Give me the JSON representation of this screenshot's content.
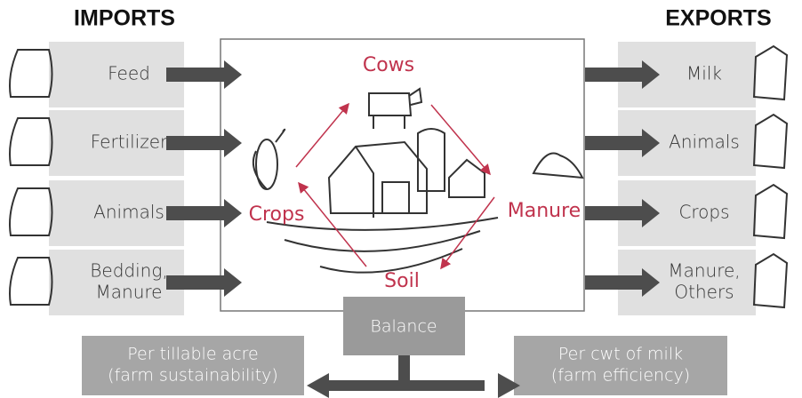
{
  "headers": {
    "imports": "IMPORTS",
    "exports": "EXPORTS"
  },
  "imports": [
    {
      "lines": [
        "Feed"
      ]
    },
    {
      "lines": [
        "Fertilizer"
      ]
    },
    {
      "lines": [
        "Animals"
      ]
    },
    {
      "lines": [
        "Bedding,",
        "Manure"
      ]
    }
  ],
  "exports": [
    {
      "lines": [
        "Milk"
      ]
    },
    {
      "lines": [
        "Animals"
      ]
    },
    {
      "lines": [
        "Crops"
      ]
    },
    {
      "lines": [
        "Manure,",
        "Others"
      ]
    }
  ],
  "cycle": {
    "cows": "Cows",
    "crops": "Crops",
    "manure": "Manure",
    "soil": "Soil"
  },
  "balance": {
    "label": "Balance",
    "left": {
      "lines": [
        "Per tillable acre",
        "(farm sustainability)"
      ]
    },
    "right": {
      "lines": [
        "Per cwt of milk",
        "(farm efficiency)"
      ]
    }
  }
}
